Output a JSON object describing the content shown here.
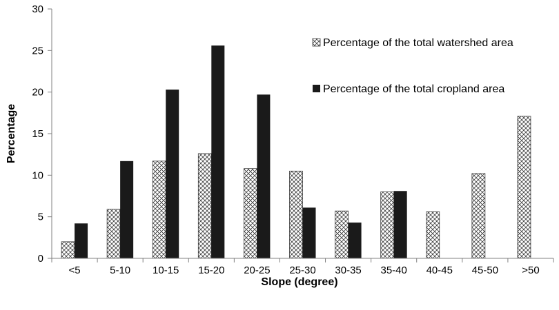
{
  "chart_data": {
    "type": "bar",
    "title": "",
    "xlabel": "Slope (degree)",
    "ylabel": "Percentage",
    "ylim": [
      0,
      30
    ],
    "yticks": [
      "0",
      "5",
      "10",
      "15",
      "20",
      "25",
      "30"
    ],
    "categories": [
      "<5",
      "5-10",
      "10-15",
      "15-20",
      "20-25",
      "25-30",
      "30-35",
      "35-40",
      "40-45",
      "45-50",
      ">50"
    ],
    "series": [
      {
        "name": "Percentage of the total watershed area",
        "pattern": "crosshatch",
        "values": [
          2.0,
          5.9,
          11.7,
          12.6,
          10.8,
          10.5,
          5.7,
          8.0,
          5.6,
          10.2,
          17.1
        ]
      },
      {
        "name": "Percentage of the total cropland area",
        "pattern": "solid",
        "color": "#1a1a1a",
        "values": [
          4.2,
          11.7,
          20.3,
          25.6,
          19.7,
          6.1,
          4.3,
          8.1,
          null,
          null,
          null
        ]
      }
    ],
    "legend_position": "top-right",
    "grid": false
  }
}
